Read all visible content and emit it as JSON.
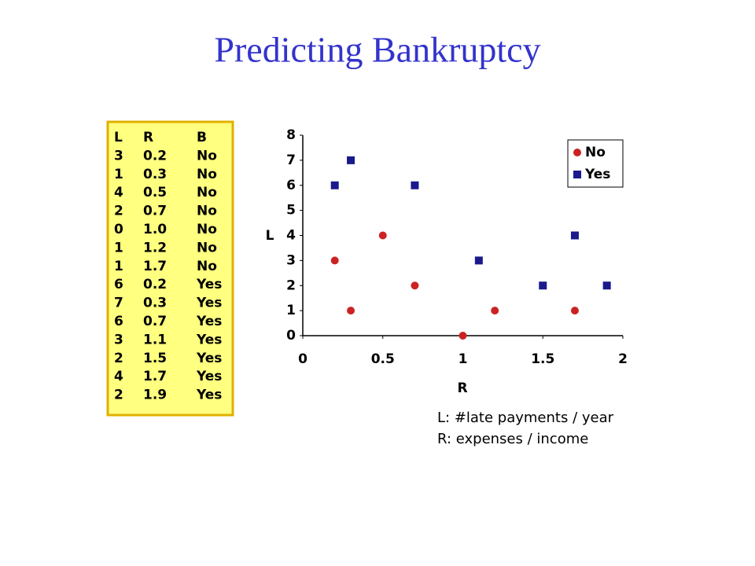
{
  "title": "Predicting Bankruptcy",
  "table": {
    "header": [
      "L",
      "R",
      "B"
    ],
    "rows": [
      [
        "3",
        "0.2",
        "No"
      ],
      [
        "1",
        "0.3",
        "No"
      ],
      [
        "4",
        "0.5",
        "No"
      ],
      [
        "2",
        "0.7",
        "No"
      ],
      [
        "0",
        "1.0",
        "No"
      ],
      [
        "1",
        "1.2",
        "No"
      ],
      [
        "1",
        "1.7",
        "No"
      ],
      [
        "6",
        "0.2",
        "Yes"
      ],
      [
        "7",
        "0.3",
        "Yes"
      ],
      [
        "6",
        "0.7",
        "Yes"
      ],
      [
        "3",
        "1.1",
        "Yes"
      ],
      [
        "2",
        "1.5",
        "Yes"
      ],
      [
        "4",
        "1.7",
        "Yes"
      ],
      [
        "2",
        "1.9",
        "Yes"
      ]
    ]
  },
  "chart_data": {
    "type": "scatter",
    "xlabel": "R",
    "ylabel": "L",
    "series": [
      {
        "name": "No",
        "color": "#cc2222",
        "marker": "circle",
        "x": [
          0.2,
          0.3,
          0.5,
          0.7,
          1.0,
          1.2,
          1.7
        ],
        "values": [
          3,
          1,
          4,
          2,
          0,
          1,
          1
        ]
      },
      {
        "name": "Yes",
        "color": "#1a1a8c",
        "marker": "square",
        "x": [
          0.2,
          0.3,
          0.7,
          1.1,
          1.5,
          1.7,
          1.9
        ],
        "values": [
          6,
          7,
          6,
          3,
          2,
          4,
          2
        ]
      }
    ],
    "xlim": [
      0,
      2
    ],
    "xticks": [
      0,
      0.5,
      1,
      1.5,
      2
    ],
    "ylim": [
      0,
      8
    ],
    "yticks": [
      0,
      1,
      2,
      3,
      4,
      5,
      6,
      7,
      8
    ],
    "legend": "upper right",
    "annotations": [
      "L: #late payments / year",
      "R: expenses / income"
    ]
  }
}
